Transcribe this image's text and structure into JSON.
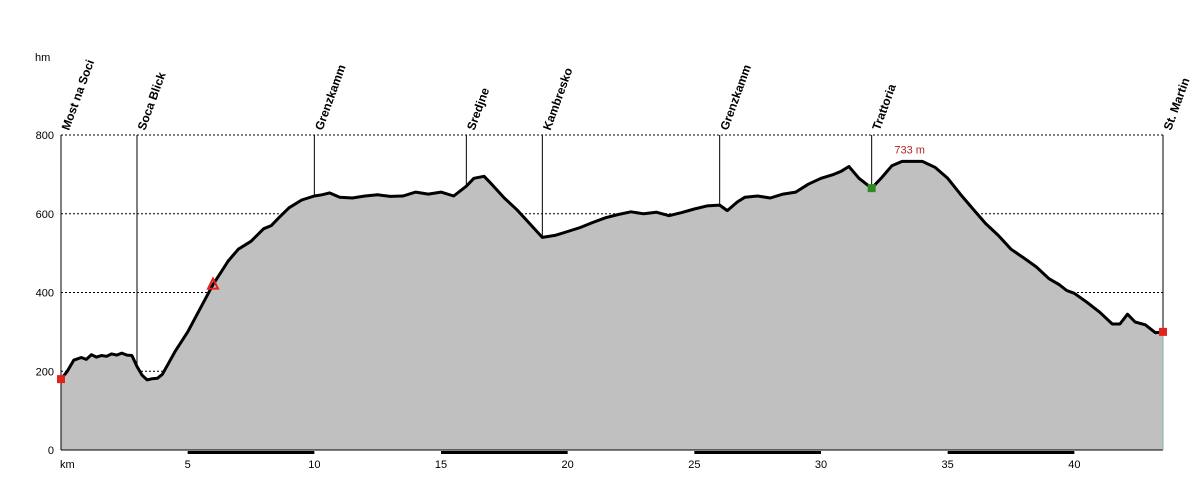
{
  "chart_data": {
    "type": "area",
    "y_unit": "hm",
    "x_unit": "km",
    "xlim": [
      0,
      43.5
    ],
    "ylim": [
      0,
      800
    ],
    "y_ticks": [
      0,
      200,
      400,
      600,
      800
    ],
    "x_ticks": [
      5,
      10,
      15,
      20,
      25,
      30,
      35,
      40
    ],
    "grid": true,
    "fill_color": "#c0c0c0",
    "line_color": "#000000",
    "profile": {
      "x": [
        0,
        0.25,
        0.5,
        0.8,
        1.0,
        1.2,
        1.4,
        1.6,
        1.8,
        2.0,
        2.2,
        2.4,
        2.6,
        2.8,
        3.0,
        3.2,
        3.4,
        3.6,
        3.8,
        4.0,
        4.2,
        4.5,
        5.0,
        5.5,
        6.0,
        6.3,
        6.6,
        7.0,
        7.5,
        8.0,
        8.3,
        8.6,
        9.0,
        9.5,
        10.0,
        10.3,
        10.6,
        11.0,
        11.5,
        12.0,
        12.5,
        13.0,
        13.5,
        14.0,
        14.5,
        15.0,
        15.5,
        16.0,
        16.3,
        16.7,
        17.0,
        17.5,
        18.0,
        18.5,
        19.0,
        19.5,
        20.0,
        20.5,
        21.0,
        21.5,
        22.0,
        22.5,
        23.0,
        23.5,
        24.0,
        24.5,
        25.0,
        25.5,
        26.0,
        26.3,
        26.7,
        27.0,
        27.5,
        28.0,
        28.5,
        29.0,
        29.5,
        30.0,
        30.5,
        30.8,
        31.1,
        31.5,
        32.0,
        32.4,
        32.8,
        33.2,
        33.6,
        34.0,
        34.5,
        35.0,
        35.5,
        36.0,
        36.5,
        37.0,
        37.5,
        38.0,
        38.5,
        39.0,
        39.4,
        39.7,
        40.0,
        40.5,
        41.0,
        41.5,
        41.8,
        42.1,
        42.4,
        42.8,
        43.2,
        43.5
      ],
      "y": [
        180,
        200,
        228,
        235,
        230,
        242,
        236,
        240,
        238,
        244,
        241,
        246,
        241,
        240,
        212,
        190,
        178,
        181,
        182,
        192,
        215,
        250,
        300,
        360,
        420,
        450,
        480,
        510,
        530,
        562,
        570,
        590,
        615,
        635,
        645,
        648,
        653,
        642,
        640,
        645,
        648,
        644,
        645,
        655,
        650,
        655,
        645,
        670,
        690,
        695,
        675,
        640,
        610,
        575,
        540,
        545,
        555,
        565,
        578,
        590,
        598,
        605,
        600,
        604,
        595,
        603,
        612,
        620,
        622,
        608,
        630,
        642,
        645,
        640,
        650,
        655,
        675,
        690,
        700,
        708,
        720,
        690,
        665,
        692,
        722,
        733,
        733,
        733,
        718,
        690,
        650,
        612,
        575,
        545,
        510,
        488,
        465,
        435,
        420,
        405,
        398,
        375,
        350,
        320,
        320,
        345,
        325,
        318,
        298,
        300
      ]
    },
    "waypoints": [
      {
        "label": "Most na Soci",
        "km": 0
      },
      {
        "label": "Soca Blick",
        "km": 3
      },
      {
        "label": "Grenzkamm",
        "km": 10
      },
      {
        "label": "Sredjne",
        "km": 16
      },
      {
        "label": "Kambresko",
        "km": 19
      },
      {
        "label": "Grenzkamm",
        "km": 26
      },
      {
        "label": "Trattoria",
        "km": 32
      },
      {
        "label": "St. Martin",
        "km": 43.5
      }
    ],
    "markers": [
      {
        "kind": "start",
        "km": 0,
        "elev": 180,
        "color": "#e2231a"
      },
      {
        "kind": "triangle",
        "km": 6,
        "elev": 420,
        "color": "#e2231a"
      },
      {
        "kind": "waypoint",
        "km": 32,
        "elev": 665,
        "color": "#2e8b22"
      },
      {
        "kind": "end",
        "km": 43.5,
        "elev": 300,
        "color": "#e2231a"
      }
    ],
    "annotations": [
      {
        "text": "733 m",
        "km": 33.5,
        "elev": 733
      }
    ]
  }
}
